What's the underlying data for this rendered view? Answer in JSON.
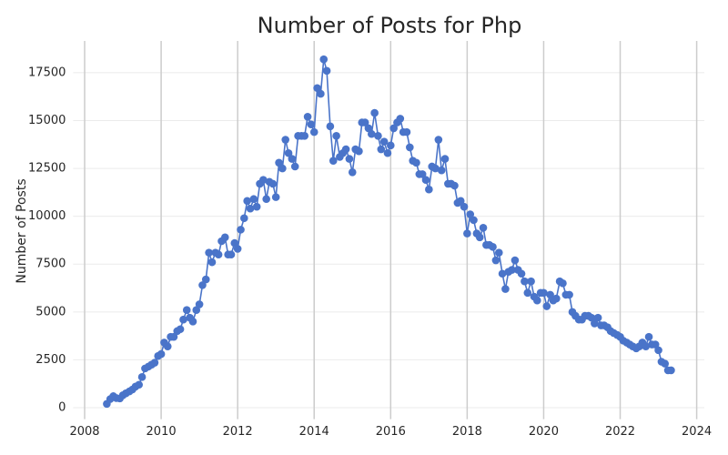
{
  "chart_data": {
    "type": "line",
    "title": "Number of Posts for Php",
    "y_label": "Number of Posts",
    "x": [
      2008.58,
      2008.67,
      2008.75,
      2008.83,
      2008.92,
      2009,
      2009.08,
      2009.17,
      2009.25,
      2009.33,
      2009.42,
      2009.5,
      2009.58,
      2009.67,
      2009.75,
      2009.83,
      2009.92,
      2010,
      2010.08,
      2010.17,
      2010.25,
      2010.33,
      2010.42,
      2010.5,
      2010.58,
      2010.67,
      2010.75,
      2010.83,
      2010.92,
      2011,
      2011.08,
      2011.17,
      2011.25,
      2011.33,
      2011.42,
      2011.5,
      2011.58,
      2011.67,
      2011.75,
      2011.83,
      2011.92,
      2012,
      2012.08,
      2012.17,
      2012.25,
      2012.33,
      2012.42,
      2012.5,
      2012.58,
      2012.67,
      2012.75,
      2012.83,
      2012.92,
      2013,
      2013.08,
      2013.17,
      2013.25,
      2013.33,
      2013.42,
      2013.5,
      2013.58,
      2013.67,
      2013.75,
      2013.83,
      2013.92,
      2014,
      2014.08,
      2014.17,
      2014.25,
      2014.33,
      2014.42,
      2014.5,
      2014.58,
      2014.67,
      2014.75,
      2014.83,
      2014.92,
      2015,
      2015.08,
      2015.17,
      2015.25,
      2015.33,
      2015.42,
      2015.5,
      2015.58,
      2015.67,
      2015.75,
      2015.83,
      2015.92,
      2016,
      2016.08,
      2016.17,
      2016.25,
      2016.33,
      2016.42,
      2016.5,
      2016.58,
      2016.67,
      2016.75,
      2016.83,
      2016.92,
      2017,
      2017.08,
      2017.17,
      2017.25,
      2017.33,
      2017.42,
      2017.5,
      2017.58,
      2017.67,
      2017.75,
      2017.83,
      2017.92,
      2018,
      2018.08,
      2018.17,
      2018.25,
      2018.33,
      2018.42,
      2018.5,
      2018.58,
      2018.67,
      2018.75,
      2018.83,
      2018.92,
      2019,
      2019.08,
      2019.17,
      2019.25,
      2019.33,
      2019.42,
      2019.5,
      2019.58,
      2019.67,
      2019.75,
      2019.83,
      2019.92,
      2020,
      2020.08,
      2020.17,
      2020.25,
      2020.33,
      2020.42,
      2020.5,
      2020.58,
      2020.67,
      2020.75,
      2020.83,
      2020.92,
      2021,
      2021.08,
      2021.17,
      2021.25,
      2021.33,
      2021.42,
      2021.5,
      2021.58,
      2021.67,
      2021.75,
      2021.83,
      2021.92,
      2022,
      2022.08,
      2022.17,
      2022.25,
      2022.33,
      2022.42,
      2022.5,
      2022.58,
      2022.67,
      2022.75,
      2022.83,
      2022.92,
      2023,
      2023.08,
      2023.17,
      2023.25,
      2023.33
    ],
    "series": [
      {
        "name": "Php",
        "color": "#4a74c9",
        "values": [
          200,
          450,
          600,
          500,
          480,
          650,
          750,
          850,
          950,
          1100,
          1200,
          1600,
          2050,
          2150,
          2250,
          2350,
          2700,
          2800,
          3400,
          3200,
          3700,
          3700,
          4000,
          4100,
          4600,
          5100,
          4700,
          4500,
          5100,
          5400,
          6400,
          6700,
          8100,
          7600,
          8100,
          8000,
          8700,
          8900,
          8000,
          8000,
          8600,
          8300,
          9300,
          9900,
          10800,
          10400,
          10900,
          10500,
          11700,
          11900,
          10900,
          11800,
          11700,
          11000,
          12800,
          12500,
          14000,
          13300,
          13000,
          12600,
          14200,
          14200,
          14200,
          15200,
          14800,
          14400,
          16700,
          16400,
          18200,
          17600,
          14700,
          12900,
          14200,
          13100,
          13300,
          13500,
          13000,
          12300,
          13500,
          13400,
          14900,
          14900,
          14600,
          14300,
          15400,
          14200,
          13500,
          13900,
          13300,
          13700,
          14600,
          14900,
          15100,
          14400,
          14400,
          13600,
          12900,
          12800,
          12200,
          12200,
          11900,
          11400,
          12600,
          12500,
          14000,
          12400,
          13000,
          11700,
          11700,
          11600,
          10700,
          10800,
          10500,
          9100,
          10100,
          9800,
          9100,
          8900,
          9400,
          8500,
          8500,
          8400,
          7700,
          8100,
          7000,
          6200,
          7100,
          7200,
          7700,
          7200,
          7000,
          6600,
          6000,
          6600,
          5800,
          5600,
          6000,
          6000,
          5300,
          5900,
          5600,
          5700,
          6600,
          6500,
          5900,
          5900,
          5000,
          4800,
          4600,
          4600,
          4800,
          4800,
          4700,
          4400,
          4700,
          4300,
          4300,
          4200,
          4000,
          3900,
          3800,
          3700,
          3500,
          3400,
          3300,
          3200,
          3100,
          3200,
          3400,
          3200,
          3700,
          3300,
          3300,
          3000,
          2400,
          2300,
          1950,
          1950
        ]
      }
    ],
    "xlim": [
      2007.7,
      2024.2
    ],
    "xticks": [
      2008,
      2010,
      2012,
      2014,
      2016,
      2018,
      2020,
      2022,
      2024
    ],
    "ylim": [
      -600,
      18400
    ],
    "yticks": [
      0,
      2500,
      5000,
      7500,
      10000,
      12500,
      15000,
      17500
    ],
    "grid": true
  }
}
